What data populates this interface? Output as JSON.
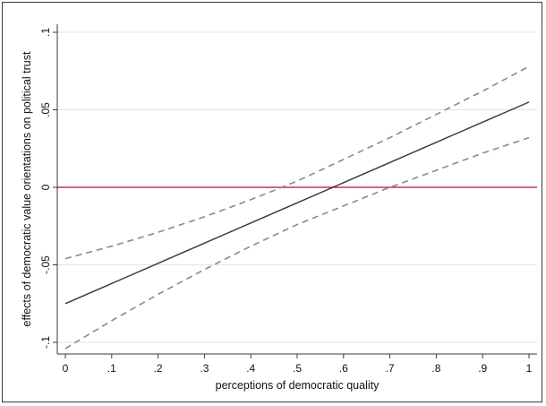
{
  "chart_data": {
    "type": "line",
    "xlabel": "perceptions of democratic quality",
    "ylabel": "effects of democratic value orientations on political trust",
    "xlim": [
      0,
      1
    ],
    "ylim": [
      -0.1,
      0.1
    ],
    "x_ticks": [
      "0",
      ".1",
      ".2",
      ".3",
      ".4",
      ".5",
      ".6",
      ".7",
      ".8",
      ".9",
      "1"
    ],
    "y_ticks": [
      "-.1",
      "-.05",
      "0",
      ".05",
      ".1"
    ],
    "grid": true,
    "series": [
      {
        "style": "solid",
        "color": "#3a3a3a",
        "x": [
          0,
          0.1,
          0.2,
          0.3,
          0.4,
          0.5,
          0.6,
          0.7,
          0.8,
          0.9,
          1.0
        ],
        "y": [
          -0.075,
          -0.062,
          -0.049,
          -0.036,
          -0.023,
          -0.01,
          0.003,
          0.016,
          0.029,
          0.042,
          0.055
        ]
      },
      {
        "style": "dashed",
        "color": "#8a8a8a",
        "x": [
          0,
          0.1,
          0.2,
          0.3,
          0.4,
          0.5,
          0.6,
          0.7,
          0.8,
          0.9,
          1.0
        ],
        "y": [
          -0.046,
          -0.038,
          -0.029,
          -0.019,
          -0.008,
          0.004,
          0.018,
          0.032,
          0.047,
          0.062,
          0.078
        ]
      },
      {
        "style": "dashed",
        "color": "#8a8a8a",
        "x": [
          0,
          0.1,
          0.2,
          0.3,
          0.4,
          0.5,
          0.6,
          0.7,
          0.8,
          0.9,
          1.0
        ],
        "y": [
          -0.104,
          -0.086,
          -0.069,
          -0.053,
          -0.038,
          -0.024,
          -0.012,
          0.0,
          0.011,
          0.022,
          0.032
        ]
      }
    ],
    "reference_line": {
      "y": 0,
      "color": "#c8324a"
    },
    "colors": {
      "gridline": "#e3e3e3",
      "axis": "#3a3a3a"
    }
  }
}
